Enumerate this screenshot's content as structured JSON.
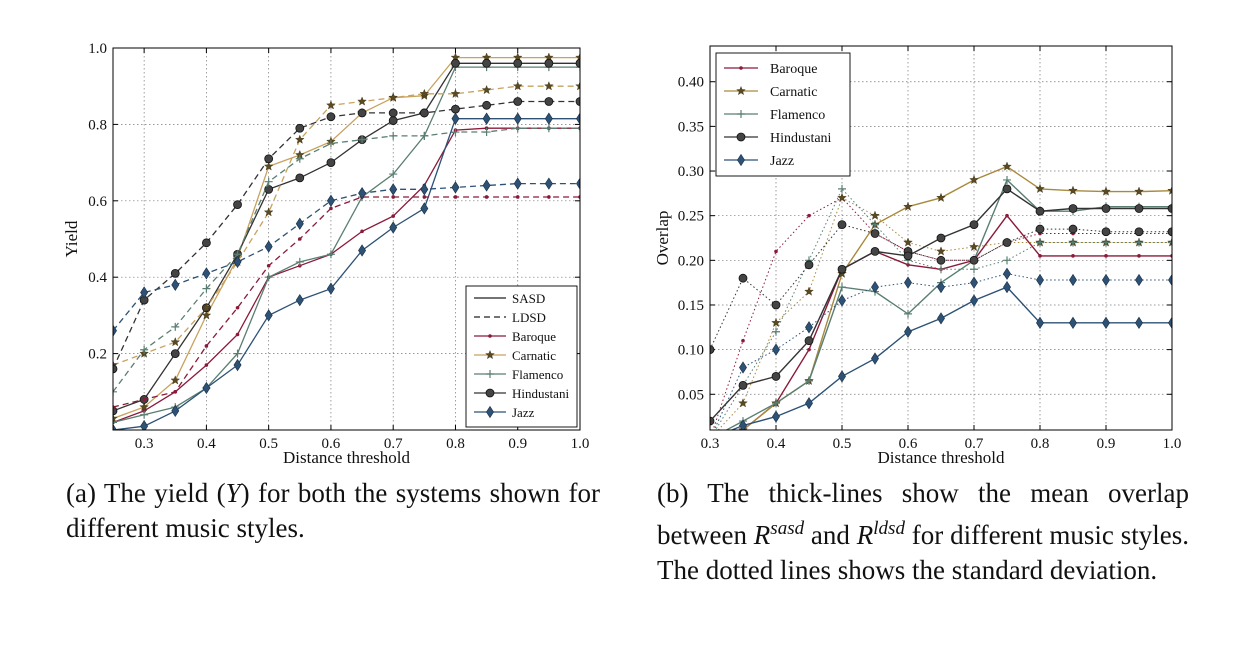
{
  "chart_data": [
    {
      "type": "line",
      "panel": "a",
      "xlabel": "Distance threshold",
      "ylabel": "Yield",
      "xlim": [
        0.25,
        1.0
      ],
      "ylim": [
        0.0,
        1.0
      ],
      "xticks": [
        "0.3",
        "0.4",
        "0.5",
        "0.6",
        "0.7",
        "0.8",
        "0.9",
        "1.0"
      ],
      "yticks": [
        "0.2",
        "0.4",
        "0.6",
        "0.8",
        "1.0"
      ],
      "grid": true,
      "legend_position": "bottom-right",
      "legend_style_entries": [
        "SASD",
        "LDSD"
      ],
      "x": [
        0.25,
        0.3,
        0.35,
        0.4,
        0.45,
        0.5,
        0.55,
        0.6,
        0.65,
        0.7,
        0.75,
        0.8,
        0.85,
        0.9,
        0.95,
        1.0
      ],
      "series": [
        {
          "name": "Baroque",
          "style": "SASD",
          "color": "#8b1a3a",
          "marker": "dot",
          "values": [
            0.02,
            0.05,
            0.1,
            0.17,
            0.25,
            0.4,
            0.43,
            0.46,
            0.52,
            0.56,
            0.64,
            0.785,
            0.79,
            0.79,
            0.79,
            0.79
          ]
        },
        {
          "name": "Carnatic",
          "style": "SASD",
          "color": "#c8a25e",
          "marker": "star",
          "values": [
            0.03,
            0.06,
            0.13,
            0.3,
            0.45,
            0.69,
            0.72,
            0.755,
            0.83,
            0.87,
            0.875,
            0.975,
            0.975,
            0.975,
            0.975,
            0.975
          ]
        },
        {
          "name": "Flamenco",
          "style": "SASD",
          "color": "#5a7f72",
          "marker": "plus",
          "values": [
            0.02,
            0.04,
            0.06,
            0.11,
            0.2,
            0.4,
            0.44,
            0.46,
            0.61,
            0.67,
            0.77,
            0.95,
            0.95,
            0.95,
            0.95,
            0.95
          ]
        },
        {
          "name": "Hindustani",
          "style": "SASD",
          "color": "#333333",
          "marker": "circle",
          "values": [
            0.05,
            0.08,
            0.2,
            0.32,
            0.46,
            0.63,
            0.66,
            0.7,
            0.76,
            0.81,
            0.83,
            0.96,
            0.96,
            0.96,
            0.96,
            0.96
          ]
        },
        {
          "name": "Jazz",
          "style": "SASD",
          "color": "#2d5276",
          "marker": "diamond",
          "values": [
            0.0,
            0.01,
            0.05,
            0.11,
            0.17,
            0.3,
            0.34,
            0.37,
            0.47,
            0.53,
            0.58,
            0.815,
            0.815,
            0.815,
            0.815,
            0.815
          ]
        },
        {
          "name": "Baroque",
          "style": "LDSD",
          "color": "#8b1a3a",
          "marker": "dot",
          "values": [
            0.06,
            0.08,
            0.1,
            0.22,
            0.32,
            0.43,
            0.5,
            0.58,
            0.61,
            0.61,
            0.61,
            0.61,
            0.61,
            0.61,
            0.61,
            0.61
          ]
        },
        {
          "name": "Carnatic",
          "style": "LDSD",
          "color": "#c8a25e",
          "marker": "star",
          "values": [
            0.17,
            0.2,
            0.23,
            0.32,
            0.44,
            0.57,
            0.76,
            0.85,
            0.86,
            0.87,
            0.88,
            0.88,
            0.89,
            0.9,
            0.9,
            0.9
          ]
        },
        {
          "name": "Flamenco",
          "style": "LDSD",
          "color": "#5a7f72",
          "marker": "plus",
          "values": [
            0.1,
            0.21,
            0.27,
            0.37,
            0.46,
            0.65,
            0.71,
            0.75,
            0.76,
            0.77,
            0.77,
            0.78,
            0.78,
            0.79,
            0.79,
            0.79
          ]
        },
        {
          "name": "Hindustani",
          "style": "LDSD",
          "color": "#333333",
          "marker": "circle",
          "values": [
            0.16,
            0.34,
            0.41,
            0.49,
            0.59,
            0.71,
            0.79,
            0.82,
            0.83,
            0.83,
            0.83,
            0.84,
            0.85,
            0.86,
            0.86,
            0.86
          ]
        },
        {
          "name": "Jazz",
          "style": "LDSD",
          "color": "#2d5276",
          "marker": "diamond",
          "values": [
            0.26,
            0.36,
            0.38,
            0.41,
            0.44,
            0.48,
            0.54,
            0.6,
            0.62,
            0.63,
            0.63,
            0.635,
            0.64,
            0.645,
            0.645,
            0.645
          ]
        }
      ]
    },
    {
      "type": "line",
      "panel": "b",
      "xlabel": "Distance threshold",
      "ylabel": "Overlap",
      "xlim": [
        0.3,
        1.0
      ],
      "ylim": [
        0.01,
        0.44
      ],
      "xticks": [
        "0.3",
        "0.4",
        "0.5",
        "0.6",
        "0.7",
        "0.8",
        "0.9",
        "1.0"
      ],
      "yticks": [
        "0.05",
        "0.10",
        "0.15",
        "0.20",
        "0.25",
        "0.30",
        "0.35",
        "0.40"
      ],
      "grid": true,
      "legend_position": "top-left",
      "x": [
        0.3,
        0.35,
        0.4,
        0.45,
        0.5,
        0.55,
        0.6,
        0.65,
        0.7,
        0.75,
        0.8,
        0.85,
        0.9,
        0.95,
        1.0
      ],
      "series": [
        {
          "name": "Baroque",
          "color": "#8b1a3a",
          "marker": "dot",
          "mean": [
            0.0,
            0.01,
            0.04,
            0.1,
            0.19,
            0.21,
            0.195,
            0.19,
            0.2,
            0.25,
            0.205,
            0.205,
            0.205,
            0.205,
            0.205
          ],
          "std": [
            0.0,
            0.11,
            0.21,
            0.25,
            0.27,
            0.23,
            0.21,
            0.2,
            0.2,
            0.22,
            0.23,
            0.23,
            0.23,
            0.23,
            0.23
          ]
        },
        {
          "name": "Carnatic",
          "color": "#a88a3e",
          "marker": "star",
          "mean": [
            0.0,
            0.01,
            0.04,
            0.065,
            0.185,
            0.24,
            0.26,
            0.27,
            0.29,
            0.305,
            0.28,
            0.278,
            0.277,
            0.277,
            0.278
          ],
          "std": [
            0.0,
            0.04,
            0.13,
            0.165,
            0.27,
            0.25,
            0.22,
            0.21,
            0.215,
            0.22,
            0.22,
            0.22,
            0.22,
            0.22,
            0.22
          ]
        },
        {
          "name": "Flamenco",
          "color": "#5a7f72",
          "marker": "plus",
          "mean": [
            0.0,
            0.02,
            0.04,
            0.065,
            0.17,
            0.165,
            0.14,
            0.175,
            0.2,
            0.29,
            0.255,
            0.255,
            0.26,
            0.26,
            0.26
          ],
          "std": [
            0.0,
            0.06,
            0.12,
            0.2,
            0.28,
            0.24,
            0.2,
            0.19,
            0.19,
            0.2,
            0.22,
            0.22,
            0.22,
            0.22,
            0.22
          ]
        },
        {
          "name": "Hindustani",
          "color": "#333333",
          "marker": "circle",
          "mean": [
            0.02,
            0.06,
            0.07,
            0.11,
            0.19,
            0.21,
            0.205,
            0.225,
            0.24,
            0.28,
            0.255,
            0.258,
            0.258,
            0.258,
            0.258
          ],
          "std": [
            0.1,
            0.18,
            0.15,
            0.195,
            0.24,
            0.23,
            0.21,
            0.2,
            0.2,
            0.22,
            0.235,
            0.235,
            0.232,
            0.232,
            0.232
          ]
        },
        {
          "name": "Jazz",
          "color": "#2d5276",
          "marker": "diamond",
          "mean": [
            0.0,
            0.015,
            0.025,
            0.04,
            0.07,
            0.09,
            0.12,
            0.135,
            0.155,
            0.17,
            0.13,
            0.13,
            0.13,
            0.13,
            0.13
          ],
          "std": [
            0.0,
            0.08,
            0.1,
            0.125,
            0.155,
            0.17,
            0.175,
            0.17,
            0.175,
            0.185,
            0.178,
            0.178,
            0.178,
            0.178,
            0.178
          ]
        }
      ]
    }
  ],
  "captions": {
    "a_label": "(a)",
    "a_text_1": "The yield (",
    "a_symbol": "Y",
    "a_text_2": ") for both the systems shown for different music styles.",
    "b_label": "(b)",
    "b_text_1": "The thick-lines show the mean overlap between ",
    "b_symbol_1": "R",
    "b_sup_1": "sasd",
    "b_text_2": " and ",
    "b_symbol_2": "R",
    "b_sup_2": "ldsd",
    "b_text_3": " for different music styles. The dotted lines shows the standard deviation."
  }
}
